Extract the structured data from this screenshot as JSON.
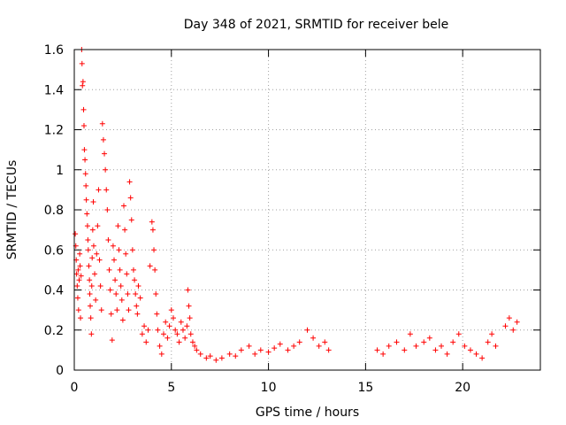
{
  "chart_data": {
    "type": "scatter",
    "title": "Day 348 of 2021, SRMTID for receiver bele",
    "xlabel": "GPS time / hours",
    "ylabel": "SRMTID / TECUs",
    "xlim": [
      0,
      24
    ],
    "ylim": [
      0,
      1.6
    ],
    "x_ticks": [
      0,
      5,
      10,
      15,
      20
    ],
    "x_tick_labels": [
      "0",
      "5",
      "10",
      "15",
      "20"
    ],
    "y_ticks": [
      0,
      0.2,
      0.4,
      0.6,
      0.8,
      1.0,
      1.2,
      1.4,
      1.6
    ],
    "y_tick_labels": [
      "0",
      "0.2",
      "0.4",
      "0.6",
      "0.8",
      "1",
      "1.2",
      "1.4",
      "1.6"
    ],
    "grid": true,
    "marker_color": "#ff0000",
    "marker": "plus",
    "series": [
      {
        "name": "SRMTID",
        "points": [
          [
            0.05,
            0.68
          ],
          [
            0.08,
            0.62
          ],
          [
            0.1,
            0.55
          ],
          [
            0.12,
            0.48
          ],
          [
            0.15,
            0.42
          ],
          [
            0.18,
            0.36
          ],
          [
            0.2,
            0.5
          ],
          [
            0.22,
            0.3
          ],
          [
            0.25,
            0.45
          ],
          [
            0.28,
            0.58
          ],
          [
            0.3,
            0.52
          ],
          [
            0.32,
            0.26
          ],
          [
            0.35,
            0.47
          ],
          [
            0.38,
            1.6
          ],
          [
            0.4,
            1.53
          ],
          [
            0.42,
            1.42
          ],
          [
            0.45,
            1.44
          ],
          [
            0.48,
            1.3
          ],
          [
            0.5,
            1.22
          ],
          [
            0.52,
            1.1
          ],
          [
            0.55,
            1.05
          ],
          [
            0.58,
            0.98
          ],
          [
            0.6,
            0.92
          ],
          [
            0.62,
            0.85
          ],
          [
            0.65,
            0.78
          ],
          [
            0.68,
            0.72
          ],
          [
            0.7,
            0.65
          ],
          [
            0.72,
            0.6
          ],
          [
            0.75,
            0.52
          ],
          [
            0.78,
            0.45
          ],
          [
            0.8,
            0.38
          ],
          [
            0.82,
            0.32
          ],
          [
            0.85,
            0.26
          ],
          [
            0.88,
            0.18
          ],
          [
            0.9,
            0.42
          ],
          [
            0.92,
            0.56
          ],
          [
            0.95,
            0.7
          ],
          [
            0.98,
            0.84
          ],
          [
            1.0,
            0.62
          ],
          [
            1.05,
            0.48
          ],
          [
            1.1,
            0.35
          ],
          [
            1.15,
            0.58
          ],
          [
            1.2,
            0.72
          ],
          [
            1.25,
            0.9
          ],
          [
            1.3,
            0.55
          ],
          [
            1.35,
            0.42
          ],
          [
            1.4,
            0.3
          ],
          [
            1.45,
            1.23
          ],
          [
            1.5,
            1.15
          ],
          [
            1.55,
            1.08
          ],
          [
            1.6,
            1.0
          ],
          [
            1.65,
            0.9
          ],
          [
            1.7,
            0.8
          ],
          [
            1.75,
            0.65
          ],
          [
            1.8,
            0.5
          ],
          [
            1.85,
            0.4
          ],
          [
            1.9,
            0.28
          ],
          [
            1.95,
            0.15
          ],
          [
            2.0,
            0.62
          ],
          [
            2.05,
            0.55
          ],
          [
            2.1,
            0.45
          ],
          [
            2.15,
            0.38
          ],
          [
            2.2,
            0.3
          ],
          [
            2.25,
            0.72
          ],
          [
            2.3,
            0.6
          ],
          [
            2.35,
            0.5
          ],
          [
            2.4,
            0.42
          ],
          [
            2.45,
            0.35
          ],
          [
            2.5,
            0.25
          ],
          [
            2.55,
            0.82
          ],
          [
            2.6,
            0.7
          ],
          [
            2.65,
            0.58
          ],
          [
            2.7,
            0.48
          ],
          [
            2.75,
            0.38
          ],
          [
            2.8,
            0.3
          ],
          [
            2.85,
            0.94
          ],
          [
            2.9,
            0.86
          ],
          [
            2.95,
            0.75
          ],
          [
            3.0,
            0.6
          ],
          [
            3.05,
            0.5
          ],
          [
            3.1,
            0.45
          ],
          [
            3.15,
            0.38
          ],
          [
            3.2,
            0.32
          ],
          [
            3.25,
            0.28
          ],
          [
            3.3,
            0.42
          ],
          [
            3.4,
            0.36
          ],
          [
            3.5,
            0.18
          ],
          [
            3.6,
            0.22
          ],
          [
            3.7,
            0.14
          ],
          [
            3.8,
            0.2
          ],
          [
            3.9,
            0.52
          ],
          [
            4.0,
            0.74
          ],
          [
            4.05,
            0.7
          ],
          [
            4.1,
            0.6
          ],
          [
            4.15,
            0.5
          ],
          [
            4.2,
            0.38
          ],
          [
            4.25,
            0.28
          ],
          [
            4.3,
            0.2
          ],
          [
            4.4,
            0.12
          ],
          [
            4.5,
            0.08
          ],
          [
            4.6,
            0.18
          ],
          [
            4.7,
            0.24
          ],
          [
            4.8,
            0.16
          ],
          [
            4.9,
            0.22
          ],
          [
            5.0,
            0.3
          ],
          [
            5.1,
            0.26
          ],
          [
            5.2,
            0.2
          ],
          [
            5.3,
            0.18
          ],
          [
            5.4,
            0.14
          ],
          [
            5.5,
            0.24
          ],
          [
            5.6,
            0.2
          ],
          [
            5.7,
            0.16
          ],
          [
            5.8,
            0.22
          ],
          [
            5.85,
            0.4
          ],
          [
            5.9,
            0.32
          ],
          [
            5.95,
            0.26
          ],
          [
            6.0,
            0.18
          ],
          [
            6.1,
            0.14
          ],
          [
            6.2,
            0.12
          ],
          [
            6.3,
            0.1
          ],
          [
            6.5,
            0.08
          ],
          [
            6.8,
            0.06
          ],
          [
            7.0,
            0.07
          ],
          [
            7.3,
            0.05
          ],
          [
            7.6,
            0.06
          ],
          [
            8.0,
            0.08
          ],
          [
            8.3,
            0.07
          ],
          [
            8.6,
            0.1
          ],
          [
            9.0,
            0.12
          ],
          [
            9.3,
            0.08
          ],
          [
            9.6,
            0.1
          ],
          [
            10.0,
            0.09
          ],
          [
            10.3,
            0.11
          ],
          [
            10.6,
            0.13
          ],
          [
            11.0,
            0.1
          ],
          [
            11.3,
            0.12
          ],
          [
            11.6,
            0.14
          ],
          [
            12.0,
            0.2
          ],
          [
            12.3,
            0.16
          ],
          [
            12.6,
            0.12
          ],
          [
            12.9,
            0.14
          ],
          [
            13.1,
            0.1
          ],
          [
            15.6,
            0.1
          ],
          [
            15.9,
            0.08
          ],
          [
            16.2,
            0.12
          ],
          [
            16.6,
            0.14
          ],
          [
            17.0,
            0.1
          ],
          [
            17.3,
            0.18
          ],
          [
            17.6,
            0.12
          ],
          [
            18.0,
            0.14
          ],
          [
            18.3,
            0.16
          ],
          [
            18.6,
            0.1
          ],
          [
            18.9,
            0.12
          ],
          [
            19.2,
            0.08
          ],
          [
            19.5,
            0.14
          ],
          [
            19.8,
            0.18
          ],
          [
            20.1,
            0.12
          ],
          [
            20.4,
            0.1
          ],
          [
            20.7,
            0.08
          ],
          [
            21.0,
            0.06
          ],
          [
            21.3,
            0.14
          ],
          [
            21.5,
            0.18
          ],
          [
            21.7,
            0.12
          ],
          [
            22.2,
            0.22
          ],
          [
            22.4,
            0.26
          ],
          [
            22.6,
            0.2
          ],
          [
            22.8,
            0.24
          ]
        ]
      }
    ]
  }
}
